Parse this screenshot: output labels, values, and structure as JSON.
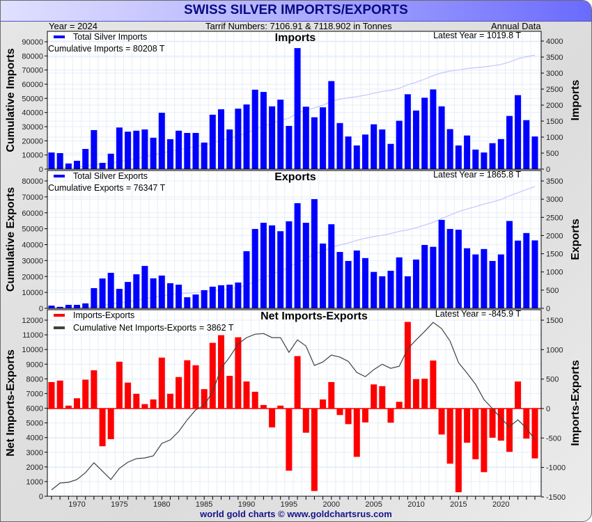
{
  "title": "SWISS SILVER IMPORTS/EXPORTS",
  "header": {
    "year_label": "Year = 2024",
    "tariff_label": "Tarrif Numbers: 7106.91 & 7118.902 in Tonnes",
    "frequency_label": "Annual Data"
  },
  "footer": "world gold charts © www.goldchartsrus.com",
  "colors": {
    "imports": "#0000ff",
    "exports": "#0000ff",
    "net": "#ff0000",
    "cum_line": "#c8c8ff",
    "net_cum_line": "#404040"
  },
  "chart_data": [
    {
      "type": "bar",
      "id": "imports",
      "title": "Imports",
      "legend": "Total Silver Imports",
      "annotation_left": "Cumulative Imports = 80208 T",
      "annotation_right": "Latest Year = 1019.8 T",
      "ylabel_left": "Cumulative Imports",
      "ylabel_right": "Imports",
      "ylim_left": [
        0,
        90000
      ],
      "ylim_right": [
        0,
        4000
      ],
      "ticks_left": [
        "0",
        "10000",
        "20000",
        "30000",
        "40000",
        "50000",
        "60000",
        "70000",
        "80000",
        "90000"
      ],
      "ticks_right": [
        "0",
        "500",
        "1000",
        "1500",
        "2000",
        "2500",
        "3000",
        "3500",
        "4000"
      ],
      "x": [
        1967,
        1968,
        1969,
        1970,
        1971,
        1972,
        1973,
        1974,
        1975,
        1976,
        1977,
        1978,
        1979,
        1980,
        1981,
        1982,
        1983,
        1984,
        1985,
        1986,
        1987,
        1988,
        1989,
        1990,
        1991,
        1992,
        1993,
        1994,
        1995,
        1996,
        1997,
        1998,
        1999,
        2000,
        2001,
        2002,
        2003,
        2004,
        2005,
        2006,
        2007,
        2008,
        2009,
        2010,
        2011,
        2012,
        2013,
        2014,
        2015,
        2016,
        2017,
        2018,
        2019,
        2020,
        2021,
        2022,
        2023,
        2024
      ],
      "values": [
        520,
        500,
        175,
        260,
        630,
        1220,
        195,
        480,
        1300,
        1170,
        1200,
        1240,
        980,
        1760,
        935,
        1200,
        1130,
        1130,
        830,
        1700,
        1870,
        1240,
        1890,
        2020,
        2480,
        2410,
        1960,
        2170,
        1350,
        3780,
        1950,
        1620,
        1930,
        2750,
        1440,
        1020,
        740,
        1080,
        1400,
        1240,
        790,
        1510,
        2340,
        1830,
        2230,
        2490,
        1960,
        1250,
        740,
        1050,
        610,
        520,
        810,
        940,
        1660,
        2310,
        1530,
        1020
      ],
      "grid": true
    },
    {
      "type": "bar",
      "id": "exports",
      "title": "Exports",
      "legend": "Total Silver Exports",
      "annotation_left": "Cumulative Exports = 76347 T",
      "annotation_right": "Latest Year = 1865.8 T",
      "ylabel_left": "Cumulative Exports",
      "ylabel_right": "Exports",
      "ylim_left": [
        0,
        80000
      ],
      "ylim_right": [
        0,
        3500
      ],
      "ticks_left": [
        "0",
        "10000",
        "20000",
        "30000",
        "40000",
        "50000",
        "60000",
        "70000",
        "80000"
      ],
      "ticks_right": [
        "0",
        "500",
        "1000",
        "1500",
        "2000",
        "2500",
        "3000",
        "3500"
      ],
      "x": [
        1967,
        1968,
        1969,
        1970,
        1971,
        1972,
        1973,
        1974,
        1975,
        1976,
        1977,
        1978,
        1979,
        1980,
        1981,
        1982,
        1983,
        1984,
        1985,
        1986,
        1987,
        1988,
        1989,
        1990,
        1991,
        1992,
        1993,
        1994,
        1995,
        1996,
        1997,
        1998,
        1999,
        2000,
        2001,
        2002,
        2003,
        2004,
        2005,
        2006,
        2007,
        2008,
        2009,
        2010,
        2011,
        2012,
        2013,
        2014,
        2015,
        2016,
        2017,
        2018,
        2019,
        2020,
        2021,
        2022,
        2023,
        2024
      ],
      "values": [
        75,
        40,
        95,
        95,
        135,
        555,
        820,
        975,
        535,
        725,
        935,
        1165,
        825,
        900,
        690,
        650,
        305,
        380,
        500,
        595,
        635,
        650,
        710,
        1570,
        2180,
        2350,
        2280,
        2120,
        2390,
        2890,
        2350,
        3000,
        1780,
        2310,
        1550,
        1300,
        1590,
        1380,
        1000,
        880,
        1030,
        1400,
        880,
        1340,
        1740,
        1690,
        2430,
        2180,
        2160,
        1650,
        1480,
        1630,
        1300,
        1480,
        2400,
        1860,
        2070,
        1866
      ],
      "grid": true
    },
    {
      "type": "bar",
      "id": "net",
      "title": "Net Imports-Exports",
      "legend": "Imports-Exports",
      "legend2": "Cumulative Net Imports-Exports",
      "annotation_left": "= 3862 T",
      "annotation_right": "Latest Year = -845.9 T",
      "ylabel_left": "Net Imports-Exports",
      "ylabel_right": "Imports-Exports",
      "ylim_left": [
        0,
        12000
      ],
      "ylim_right": [
        -1500,
        1500
      ],
      "ticks_left": [
        "0",
        "1000",
        "2000",
        "3000",
        "4000",
        "5000",
        "6000",
        "7000",
        "8000",
        "9000",
        "10000",
        "11000",
        "12000"
      ],
      "ticks_right": [
        "-1500",
        "-1000",
        "-500",
        "0",
        "500",
        "1000",
        "1500"
      ],
      "x_ticks": [
        "1970",
        "1975",
        "1980",
        "1985",
        "1990",
        "1995",
        "2000",
        "2005",
        "2010",
        "2015",
        "2020"
      ],
      "x": [
        1967,
        1968,
        1969,
        1970,
        1971,
        1972,
        1973,
        1974,
        1975,
        1976,
        1977,
        1978,
        1979,
        1980,
        1981,
        1982,
        1983,
        1984,
        1985,
        1986,
        1987,
        1988,
        1989,
        1990,
        1991,
        1992,
        1993,
        1994,
        1995,
        1996,
        1997,
        1998,
        1999,
        2000,
        2001,
        2002,
        2003,
        2004,
        2005,
        2006,
        2007,
        2008,
        2009,
        2010,
        2011,
        2012,
        2013,
        2014,
        2015,
        2016,
        2017,
        2018,
        2019,
        2020,
        2021,
        2022,
        2023,
        2024
      ],
      "values": [
        450,
        475,
        50,
        175,
        490,
        650,
        -640,
        -520,
        795,
        440,
        250,
        75,
        155,
        865,
        250,
        535,
        820,
        735,
        330,
        1115,
        1245,
        555,
        1210,
        460,
        285,
        60,
        -320,
        50,
        -1055,
        890,
        -410,
        -1400,
        155,
        450,
        -110,
        -265,
        -820,
        -235,
        410,
        380,
        -240,
        115,
        1470,
        500,
        505,
        815,
        -440,
        -935,
        -1420,
        -580,
        -860,
        -1080,
        -495,
        -545,
        -735,
        460,
        -510,
        -846
      ],
      "cumulative_line": [
        430,
        900,
        950,
        1140,
        1610,
        2280,
        1710,
        1140,
        1900,
        2320,
        2560,
        2610,
        2750,
        3600,
        3840,
        4410,
        5210,
        5880,
        6210,
        7110,
        8720,
        9480,
        10380,
        10810,
        11040,
        11090,
        10810,
        10810,
        9810,
        10660,
        10240,
        8910,
        9150,
        9620,
        9480,
        9190,
        8440,
        8150,
        8630,
        9000,
        8720,
        8860,
        10050,
        10660,
        11230,
        11850,
        11420,
        10570,
        9100,
        8390,
        7630,
        6590,
        5970,
        5310,
        4740,
        5210,
        4640,
        3860
      ],
      "grid": true
    }
  ]
}
